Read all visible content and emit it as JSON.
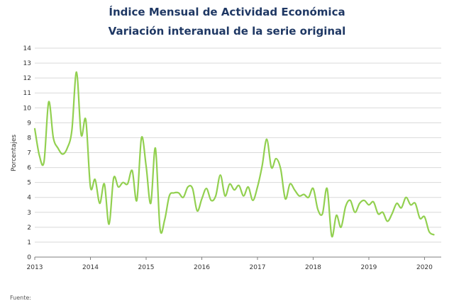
{
  "chart_data": {
    "type": "line",
    "title": "Índice Mensual de Actividad Económica",
    "subtitle": "Variación interanual de la serie original",
    "ylabel": "Porcentajes",
    "xlabel": "",
    "ylim": [
      0,
      14
    ],
    "y_ticks": [
      "0",
      "1",
      "2",
      "3",
      "4",
      "5",
      "6",
      "7",
      "8",
      "9",
      "10",
      "11",
      "12",
      "13",
      "14"
    ],
    "x_tick_labels": [
      "2013",
      "2014",
      "2015",
      "2016",
      "2017",
      "2018",
      "2019",
      "2020"
    ],
    "grid": true,
    "legend": "none",
    "line_color": "#92d050",
    "series": [
      {
        "start": "2013-01",
        "frequency": "monthly",
        "values": [
          8.6,
          6.8,
          6.4,
          10.4,
          8.0,
          7.3,
          6.9,
          7.3,
          8.5,
          12.4,
          8.2,
          9.2,
          4.7,
          5.2,
          3.6,
          4.9,
          2.2,
          5.3,
          4.7,
          5.0,
          4.9,
          5.8,
          3.8,
          8.0,
          6.1,
          3.6,
          7.3,
          1.9,
          2.5,
          4.1,
          4.3,
          4.3,
          4.0,
          4.7,
          4.6,
          3.1,
          3.9,
          4.6,
          3.8,
          4.1,
          5.5,
          4.1,
          4.9,
          4.5,
          4.8,
          4.1,
          4.7,
          3.8,
          4.7,
          6.1,
          7.9,
          6.0,
          6.6,
          5.9,
          3.9,
          4.9,
          4.5,
          4.1,
          4.2,
          4.0,
          4.6,
          3.2,
          2.9,
          4.6,
          1.4,
          2.8,
          2.0,
          3.4,
          3.8,
          3.0,
          3.6,
          3.8,
          3.5,
          3.7,
          2.9,
          3.0,
          2.4,
          2.9,
          3.6,
          3.3,
          4.0,
          3.5,
          3.6,
          2.6,
          2.7,
          1.7,
          1.5
        ]
      }
    ]
  },
  "footer_text": "Fuente:"
}
